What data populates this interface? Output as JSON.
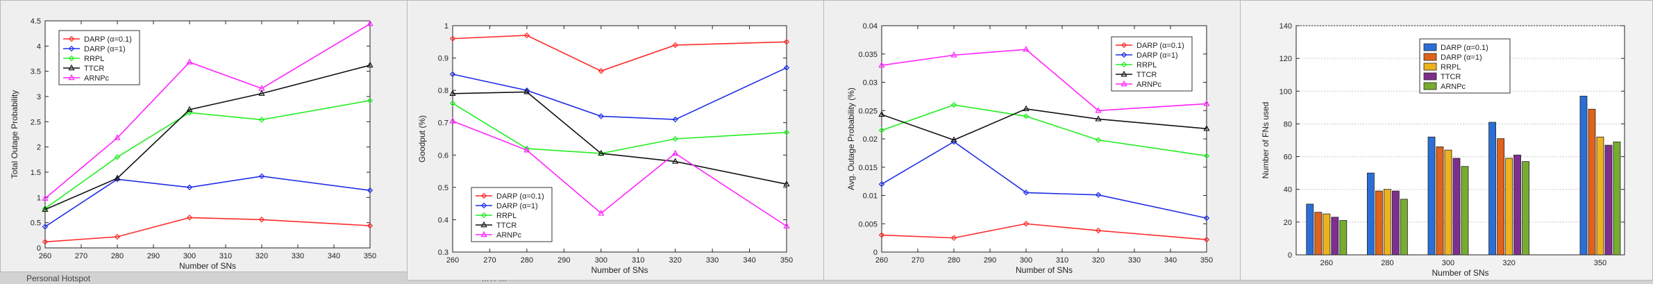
{
  "background": {
    "under_text_left": "Personal Hotspot",
    "under_text_mid": "MTPm"
  },
  "charts": [
    {
      "type": "line",
      "ylabel": "Total Outage Probability",
      "xlabel": "Number of SNs",
      "xlim": [
        260,
        350
      ],
      "ylim": [
        0,
        4.5
      ],
      "xticks": [
        260,
        270,
        280,
        290,
        300,
        310,
        320,
        330,
        340,
        350
      ],
      "yticks": [
        0,
        0.5,
        1,
        1.5,
        2,
        2.5,
        3,
        3.5,
        4,
        4.5
      ],
      "ytick_labels": [
        "0",
        "0.5",
        "1",
        "1.5",
        "2",
        "2.5",
        "3",
        "3.5",
        "4",
        "4.5"
      ],
      "legend_pos": "top-left",
      "x": [
        260,
        280,
        300,
        320,
        350
      ],
      "series": [
        {
          "name": "DARP (α=0.1)",
          "color": "#ff2a2a",
          "marker": "diamond",
          "values": [
            0.12,
            0.22,
            0.6,
            0.56,
            0.44
          ]
        },
        {
          "name": "DARP (α=1)",
          "color": "#1f2ee6",
          "marker": "diamond",
          "values": [
            0.42,
            1.36,
            1.2,
            1.42,
            1.14
          ]
        },
        {
          "name": "RRPL",
          "color": "#22ee22",
          "marker": "diamond",
          "values": [
            0.78,
            1.8,
            2.68,
            2.54,
            2.92
          ]
        },
        {
          "name": "TTCR",
          "color": "#111111",
          "marker": "triangle",
          "values": [
            0.76,
            1.38,
            2.74,
            3.06,
            3.62
          ]
        },
        {
          "name": "ARNPc",
          "color": "#ff22ff",
          "marker": "triangle",
          "values": [
            0.98,
            2.18,
            3.68,
            3.16,
            4.44
          ]
        }
      ]
    },
    {
      "type": "line",
      "ylabel": "Goodput (%)",
      "xlabel": "Number of SNs",
      "xlim": [
        260,
        350
      ],
      "ylim": [
        0.3,
        1
      ],
      "xticks": [
        260,
        270,
        280,
        290,
        300,
        310,
        320,
        330,
        340,
        350
      ],
      "yticks": [
        0.3,
        0.4,
        0.5,
        0.6,
        0.7,
        0.8,
        0.9,
        1
      ],
      "ytick_labels": [
        "0.3",
        "0.4",
        "0.5",
        "0.6",
        "0.7",
        "0.8",
        "0.9",
        "1"
      ],
      "legend_pos": "bottom-left",
      "x": [
        260,
        280,
        300,
        320,
        350
      ],
      "series": [
        {
          "name": "DARP (α=0.1)",
          "color": "#ff2a2a",
          "marker": "diamond",
          "values": [
            0.96,
            0.97,
            0.86,
            0.94,
            0.95
          ]
        },
        {
          "name": "DARP (α=1)",
          "color": "#1f2ee6",
          "marker": "diamond",
          "values": [
            0.85,
            0.8,
            0.72,
            0.71,
            0.87
          ]
        },
        {
          "name": "RRPL",
          "color": "#22ee22",
          "marker": "diamond",
          "values": [
            0.76,
            0.62,
            0.605,
            0.65,
            0.67
          ]
        },
        {
          "name": "TTCR",
          "color": "#111111",
          "marker": "triangle",
          "values": [
            0.79,
            0.795,
            0.605,
            0.58,
            0.51
          ]
        },
        {
          "name": "ARNPc",
          "color": "#ff22ff",
          "marker": "triangle",
          "values": [
            0.705,
            0.615,
            0.42,
            0.605,
            0.38
          ]
        }
      ]
    },
    {
      "type": "line",
      "ylabel": "Avg. Outage Probability (%)",
      "xlabel": "Number of SNs",
      "xlim": [
        260,
        350
      ],
      "ylim": [
        0,
        0.04
      ],
      "xticks": [
        260,
        270,
        280,
        290,
        300,
        310,
        320,
        330,
        340,
        350
      ],
      "yticks": [
        0,
        0.005,
        0.01,
        0.015,
        0.02,
        0.025,
        0.03,
        0.035,
        0.04
      ],
      "ytick_labels": [
        "0",
        "0.005",
        "0.01",
        "0.015",
        "0.02",
        "0.025",
        "0.03",
        "0.035",
        "0.04"
      ],
      "legend_pos": "top-right",
      "x": [
        260,
        280,
        300,
        320,
        350
      ],
      "series": [
        {
          "name": "DARP (α=0.1)",
          "color": "#ff2a2a",
          "marker": "diamond",
          "values": [
            0.003,
            0.0025,
            0.005,
            0.0038,
            0.0022
          ]
        },
        {
          "name": "DARP (α=1)",
          "color": "#1f2ee6",
          "marker": "diamond",
          "values": [
            0.012,
            0.0195,
            0.0105,
            0.0101,
            0.006
          ]
        },
        {
          "name": "RRPL",
          "color": "#22ee22",
          "marker": "diamond",
          "values": [
            0.0215,
            0.026,
            0.024,
            0.0198,
            0.017
          ]
        },
        {
          "name": "TTCR",
          "color": "#111111",
          "marker": "triangle",
          "values": [
            0.0243,
            0.0198,
            0.0253,
            0.0235,
            0.0218
          ]
        },
        {
          "name": "ARNPc",
          "color": "#ff22ff",
          "marker": "triangle",
          "values": [
            0.033,
            0.0348,
            0.0358,
            0.025,
            0.0262
          ]
        }
      ]
    },
    {
      "type": "bar",
      "ylabel": "Number of FNs used",
      "xlabel": "Number of SNs",
      "ylim": [
        0,
        140
      ],
      "yticks": [
        0,
        20,
        40,
        60,
        80,
        100,
        120,
        140
      ],
      "ytick_labels": [
        "0",
        "20",
        "40",
        "60",
        "80",
        "100",
        "120",
        "140"
      ],
      "legend_pos": "top-center",
      "categories": [
        "260",
        "280",
        "300",
        "320",
        "350"
      ],
      "category_x": [
        260,
        280,
        300,
        320,
        350
      ],
      "xlim": [
        250,
        358
      ],
      "series": [
        {
          "name": "DARP (α=0.1)",
          "color": "#2b6fd6",
          "values": [
            31,
            50,
            72,
            81,
            97
          ]
        },
        {
          "name": "DARP (α=1)",
          "color": "#e0621c",
          "values": [
            26,
            39,
            66,
            71,
            89
          ]
        },
        {
          "name": "RRPL",
          "color": "#eeb21f",
          "values": [
            25,
            40,
            64,
            59,
            72
          ]
        },
        {
          "name": "TTCR",
          "color": "#7e2f8e",
          "values": [
            23,
            39,
            59,
            61,
            67
          ]
        },
        {
          "name": "ARNPc",
          "color": "#77ac30",
          "values": [
            21,
            34,
            54,
            57,
            69
          ]
        }
      ]
    }
  ]
}
